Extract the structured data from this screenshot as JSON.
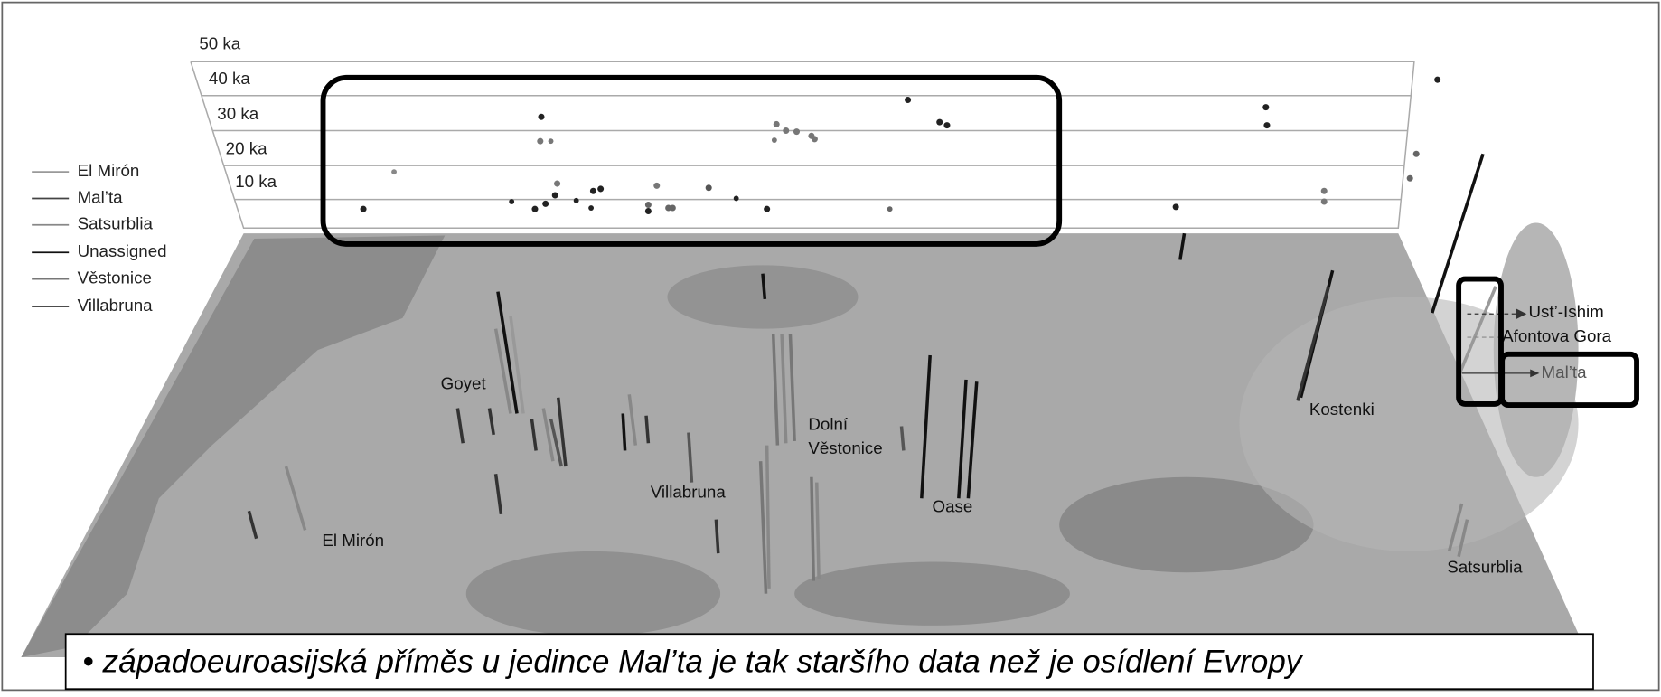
{
  "axis": {
    "ticks": [
      "50 ka",
      "40 ka",
      "30 ka",
      "20 ka",
      "10 ka"
    ]
  },
  "legend": [
    "El Mirón",
    "Mal’ta",
    "Satsurblia",
    "Unassigned",
    "Věstonice",
    "Villabruna"
  ],
  "places": [
    "Goyet",
    "Dolní",
    "Věstonice",
    "Villabruna",
    "Oase",
    "El Mirón",
    "Kostenki",
    "Satsurblia"
  ],
  "callouts": [
    "Ust’-Ishim",
    "Afontova Gora",
    "Mal’ta"
  ],
  "caption": "• západoeuroasijská příměs u jedince Mal’ta je tak staršího data než je osídlení Evropy"
}
